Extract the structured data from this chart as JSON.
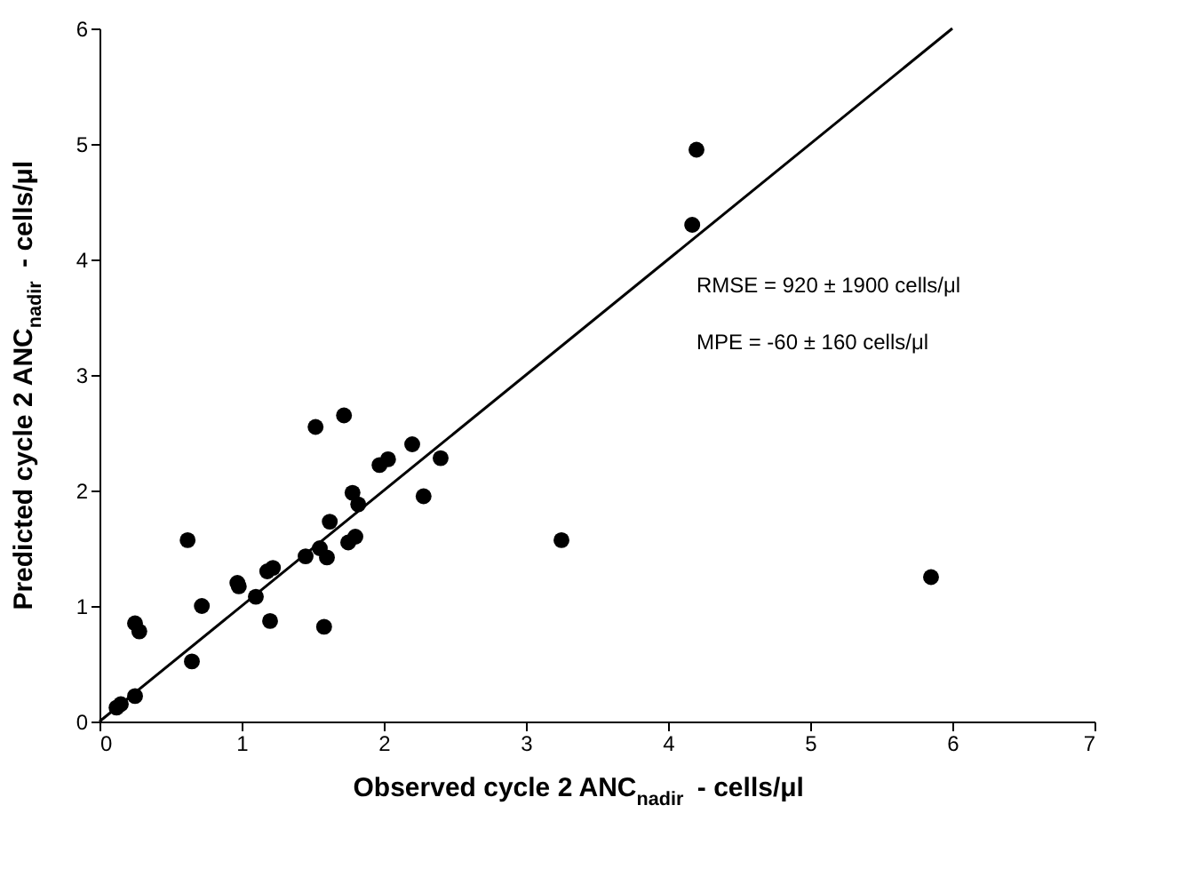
{
  "chart_data": {
    "type": "scatter",
    "xlabel": "Observed cycle 2 ANC$_{nadir}$ - cells/μl",
    "ylabel": "Predicted cycle 2 ANC$_{nadir}$ - cells/μl",
    "xlim": [
      0,
      7
    ],
    "ylim": [
      0,
      6
    ],
    "xticks": [
      0,
      1,
      2,
      3,
      4,
      5,
      6,
      7
    ],
    "yticks": [
      0,
      1,
      2,
      3,
      4,
      5,
      6
    ],
    "grid": false,
    "annotations": [
      "RMSE = 920 ± 1900 cells/μl",
      "MPE = -60 ± 160 cells/μl"
    ],
    "series": [
      {
        "color": "#000000",
        "marker": "circle",
        "x": [
          0.12,
          0.15,
          0.25,
          0.25,
          0.28,
          0.62,
          0.65,
          0.72,
          0.97,
          0.98,
          1.1,
          1.18,
          1.22,
          1.2,
          1.45,
          1.52,
          1.55,
          1.58,
          1.6,
          1.62,
          1.72,
          1.75,
          1.78,
          1.8,
          1.82,
          1.97,
          2.03,
          2.2,
          2.28,
          2.4,
          3.25,
          4.17,
          4.2,
          5.85
        ],
        "values": [
          0.12,
          0.15,
          0.22,
          0.85,
          0.78,
          1.57,
          0.52,
          1.0,
          1.2,
          1.17,
          1.08,
          1.3,
          1.33,
          0.87,
          1.43,
          2.55,
          1.5,
          0.82,
          1.42,
          1.73,
          2.65,
          1.55,
          1.98,
          1.6,
          1.88,
          2.22,
          2.27,
          2.4,
          1.95,
          2.28,
          1.57,
          4.3,
          4.95,
          1.25
        ]
      },
      {
        "type": "line",
        "color": "#000000",
        "marker": "none",
        "line_style": "solid",
        "x": [
          0,
          6
        ],
        "values": [
          0,
          6
        ]
      }
    ]
  }
}
